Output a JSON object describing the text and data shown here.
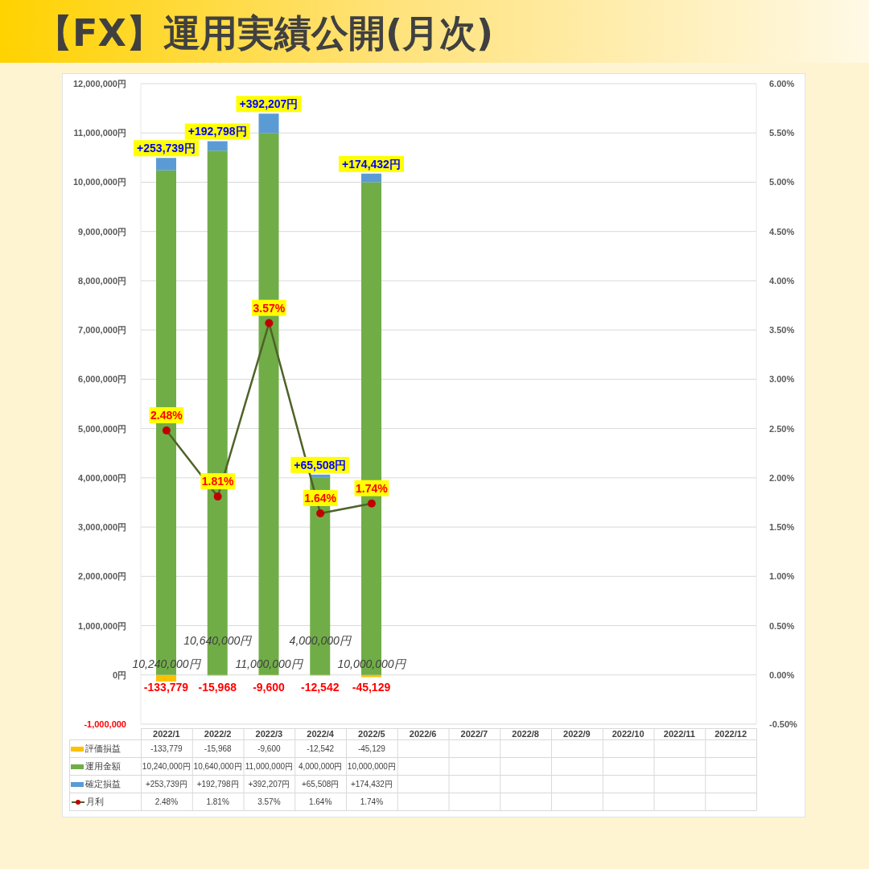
{
  "chart_data": {
    "type": "bar",
    "title": "【FX】運用実績公開(月次)",
    "categories": [
      "2022/1",
      "2022/2",
      "2022/3",
      "2022/4",
      "2022/5",
      "2022/6",
      "2022/7",
      "2022/8",
      "2022/9",
      "2022/10",
      "2022/11",
      "2022/12"
    ],
    "stacked": true,
    "series": [
      {
        "name": "評価損益",
        "color": "#ffc000",
        "values": [
          -133779,
          -15968,
          -9600,
          -12542,
          -45129,
          null,
          null,
          null,
          null,
          null,
          null,
          null
        ],
        "value_labels": [
          "-133,779",
          "-15,968",
          "-9,600",
          "-12,542",
          "-45,129",
          null,
          null,
          null,
          null,
          null,
          null,
          null
        ]
      },
      {
        "name": "運用金額",
        "color": "#70ad47",
        "values": [
          10240000,
          10640000,
          11000000,
          4000000,
          10000000,
          null,
          null,
          null,
          null,
          null,
          null,
          null
        ],
        "value_labels": [
          "10,240,000円",
          "10,640,000円",
          "11,000,000円",
          "4,000,000円",
          "10,000,000円",
          null,
          null,
          null,
          null,
          null,
          null,
          null
        ]
      },
      {
        "name": "確定損益",
        "color": "#5b9bd5",
        "values": [
          253739,
          192798,
          392207,
          65508,
          174432,
          null,
          null,
          null,
          null,
          null,
          null,
          null
        ],
        "value_labels": [
          "+253,739円",
          "+192,798円",
          "+392,207円",
          "+65,508円",
          "+174,432円",
          null,
          null,
          null,
          null,
          null,
          null,
          null
        ]
      },
      {
        "name": "月利",
        "type": "line",
        "axis": "y2",
        "color": "#4f6228",
        "marker": "circle",
        "colors": [
          "#c00000",
          "#c00000",
          "#c00000",
          "#c00000",
          "#c00000",
          null,
          null,
          null,
          null,
          null,
          null,
          null
        ],
        "values": [
          2.48,
          1.81,
          3.57,
          1.64,
          1.74,
          null,
          null,
          null,
          null,
          null,
          null,
          null
        ],
        "value_labels": [
          "2.48%",
          "1.81%",
          "3.57%",
          "1.64%",
          "1.74%",
          null,
          null,
          null,
          null,
          null,
          null,
          null
        ]
      }
    ],
    "ylim": [
      -1000000,
      12000000
    ],
    "yticks": [
      {
        "value": -1000000,
        "label": "-1,000,000"
      },
      {
        "value": 0,
        "label": "0円"
      },
      {
        "value": 1000000,
        "label": "1,000,000円"
      },
      {
        "value": 2000000,
        "label": "2,000,000円"
      },
      {
        "value": 3000000,
        "label": "3,000,000円"
      },
      {
        "value": 4000000,
        "label": "4,000,000円"
      },
      {
        "value": 5000000,
        "label": "5,000,000円"
      },
      {
        "value": 6000000,
        "label": "6,000,000円"
      },
      {
        "value": 7000000,
        "label": "7,000,000円"
      },
      {
        "value": 8000000,
        "label": "8,000,000円"
      },
      {
        "value": 9000000,
        "label": "9,000,000円"
      },
      {
        "value": 10000000,
        "label": "10,000,000円"
      },
      {
        "value": 11000000,
        "label": "11,000,000円"
      },
      {
        "value": 12000000,
        "label": "12,000,000円"
      }
    ],
    "y2lim": [
      -0.5,
      6
    ],
    "y2ticks": [
      {
        "value": -0.5,
        "label": "-0.50%"
      },
      {
        "value": 0,
        "label": "0.00%"
      },
      {
        "value": 0.5,
        "label": "0.50%"
      },
      {
        "value": 1,
        "label": "1.00%"
      },
      {
        "value": 1.5,
        "label": "1.50%"
      },
      {
        "value": 2,
        "label": "2.00%"
      },
      {
        "value": 2.5,
        "label": "2.50%"
      },
      {
        "value": 3,
        "label": "3.00%"
      },
      {
        "value": 3.5,
        "label": "3.50%"
      },
      {
        "value": 4,
        "label": "4.00%"
      },
      {
        "value": 4.5,
        "label": "4.50%"
      },
      {
        "value": 5,
        "label": "5.00%"
      },
      {
        "value": 5.5,
        "label": "5.50%"
      },
      {
        "value": 6,
        "label": "6.00%"
      }
    ],
    "grid": "y",
    "legend": "bottom"
  }
}
